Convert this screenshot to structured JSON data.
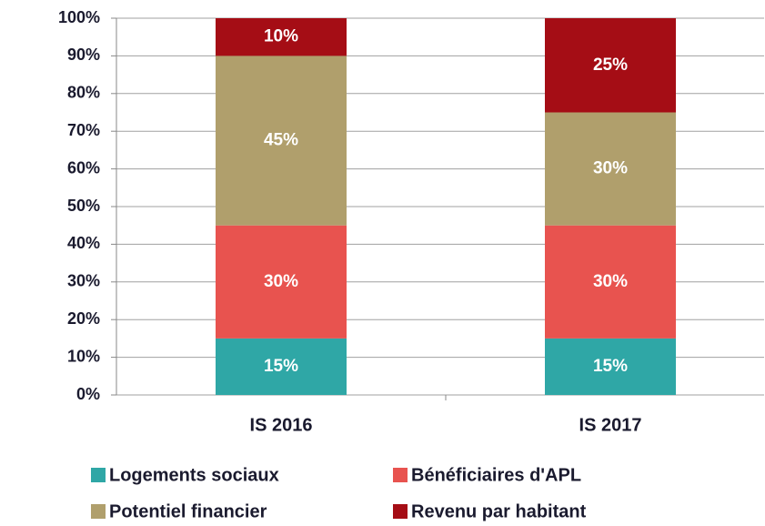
{
  "chart_data": {
    "type": "stacked_bar",
    "categories": [
      "IS 2016",
      "IS 2017"
    ],
    "series": [
      {
        "name": "Logements sociaux",
        "color": "#2fa7a6",
        "values": [
          15,
          15
        ],
        "value_labels": [
          "15%",
          "15%"
        ]
      },
      {
        "name": "Bénéficiaires d'APL",
        "color": "#e8534f",
        "values": [
          30,
          30
        ],
        "value_labels": [
          "30%",
          "30%"
        ]
      },
      {
        "name": "Potentiel financier",
        "color": "#b09f6c",
        "values": [
          45,
          30
        ],
        "value_labels": [
          "45%",
          "30%"
        ]
      },
      {
        "name": "Revenu par habitant",
        "color": "#a50d15",
        "values": [
          10,
          25
        ],
        "value_labels": [
          "10%",
          "25%"
        ]
      }
    ],
    "ylim": [
      0,
      100
    ],
    "yticks": [
      {
        "value": 0,
        "label": "0%"
      },
      {
        "value": 10,
        "label": "10%"
      },
      {
        "value": 20,
        "label": "20%"
      },
      {
        "value": 30,
        "label": "30%"
      },
      {
        "value": 40,
        "label": "40%"
      },
      {
        "value": 50,
        "label": "50%"
      },
      {
        "value": 60,
        "label": "60%"
      },
      {
        "value": 70,
        "label": "70%"
      },
      {
        "value": 80,
        "label": "80%"
      },
      {
        "value": 90,
        "label": "90%"
      },
      {
        "value": 100,
        "label": "100%"
      }
    ],
    "grid": true
  }
}
